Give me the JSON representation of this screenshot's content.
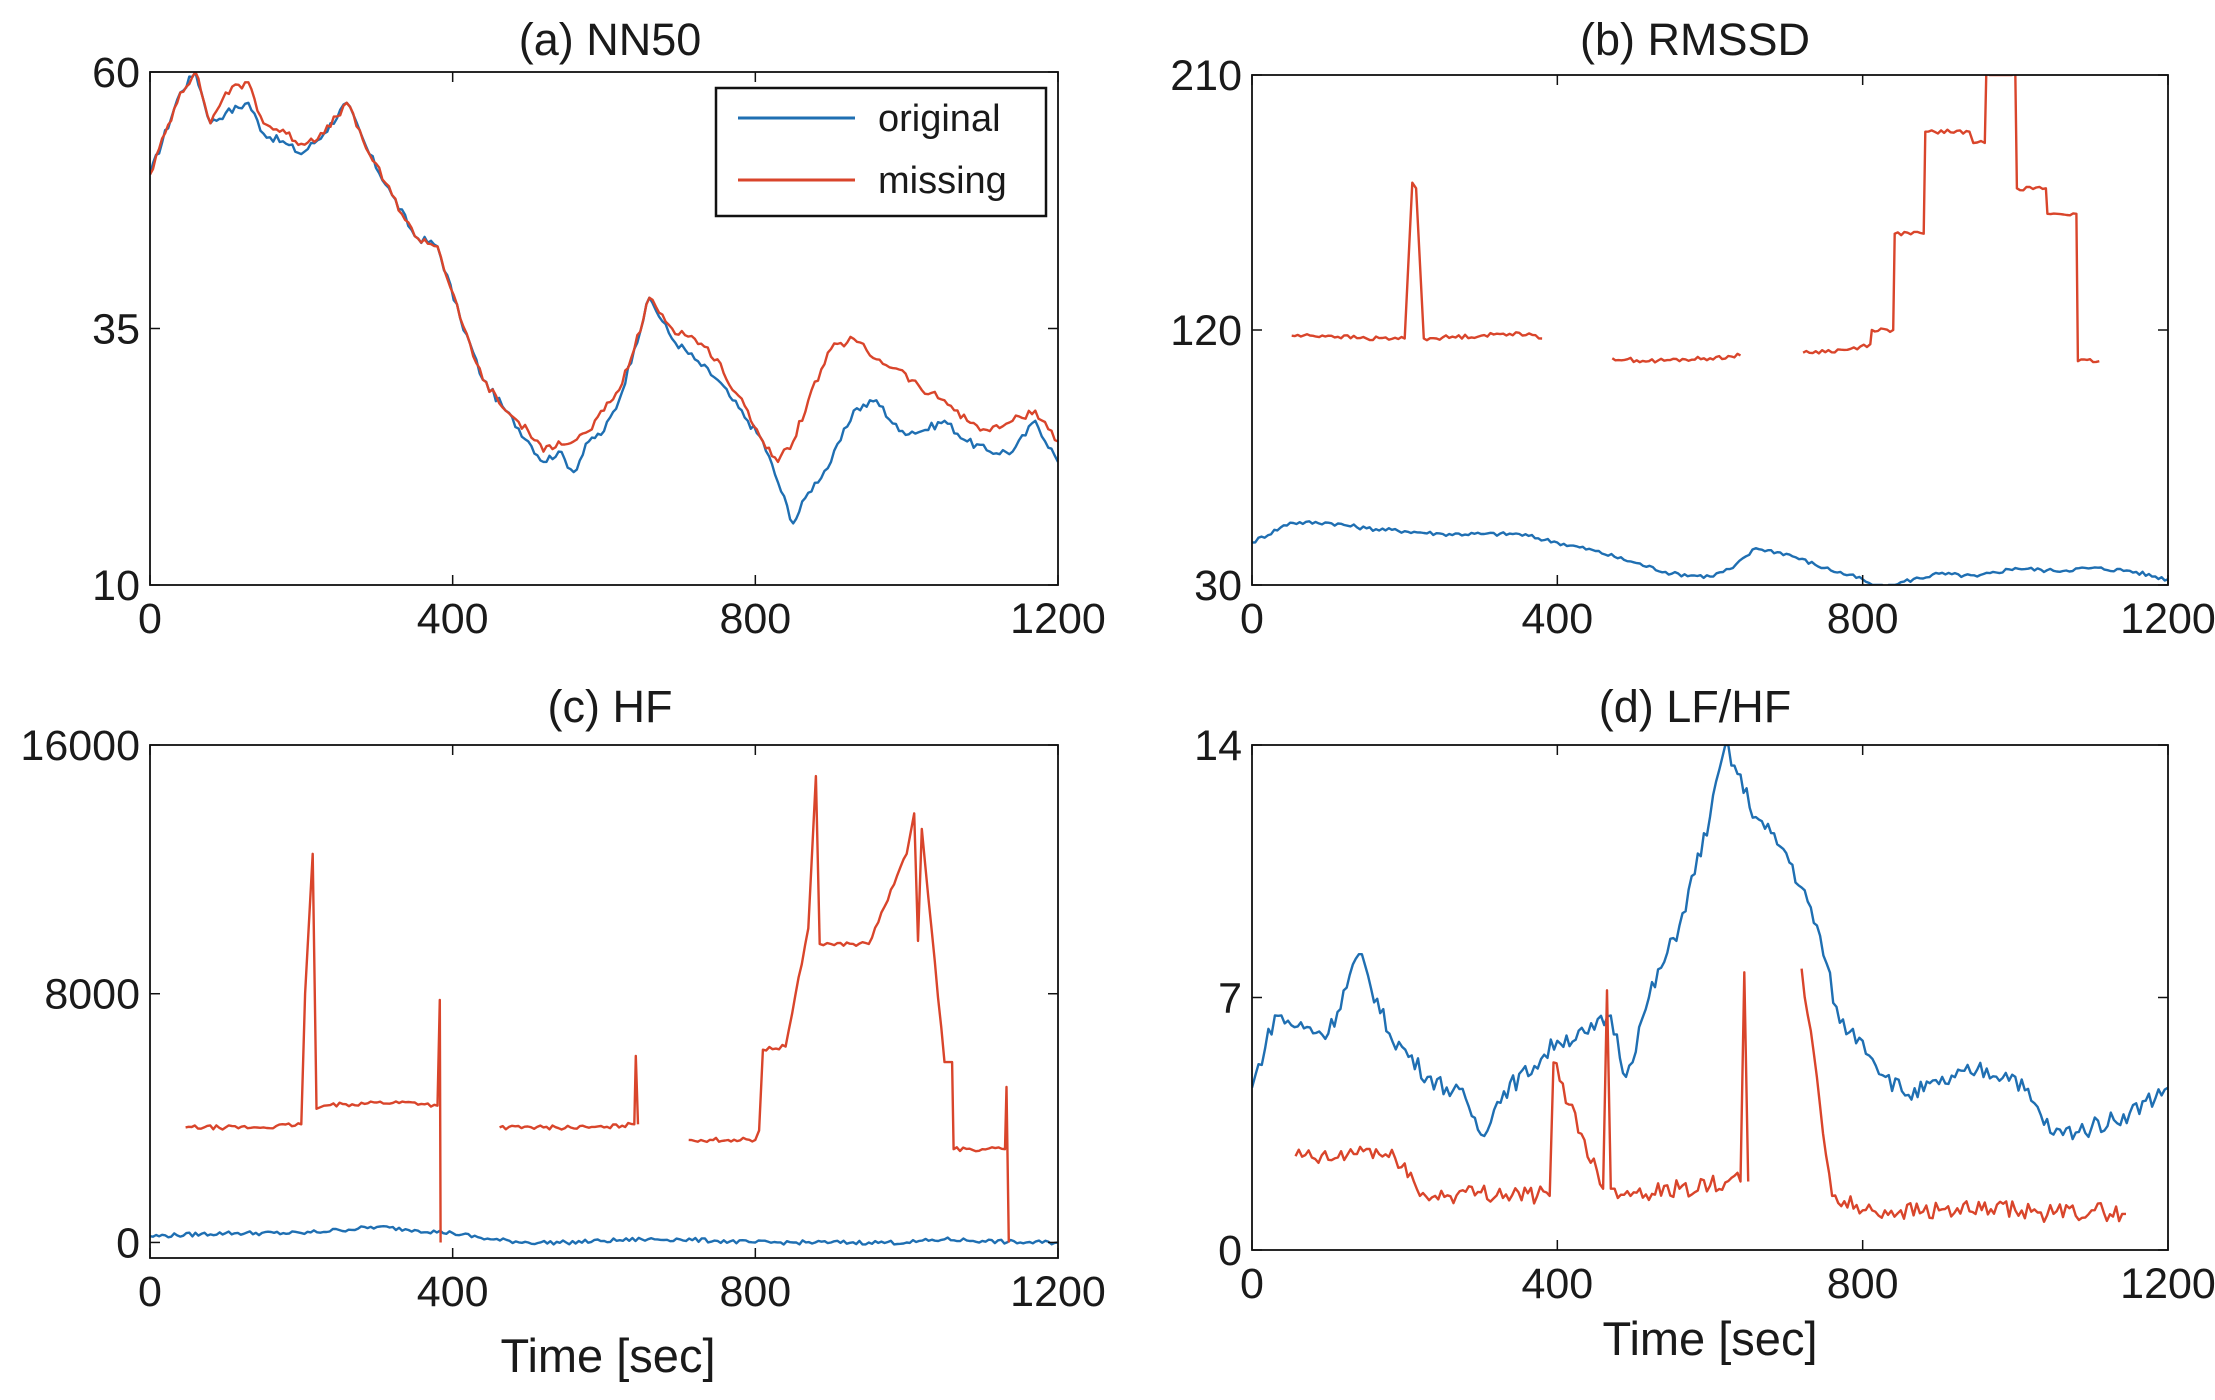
{
  "figure": {
    "xlabel": "Time [sec]",
    "legend": {
      "entries": [
        "original",
        "missing"
      ]
    },
    "colors": {
      "original": "#1f6fb2",
      "missing": "#d9452b",
      "axis": "#111111"
    }
  },
  "chart_data": [
    {
      "type": "line",
      "title": "(a) NN50",
      "xlabel": "",
      "ylabel": "",
      "xlim": [
        0,
        1200
      ],
      "ylim": [
        10,
        60
      ],
      "xticks": [
        0,
        400,
        800,
        1200
      ],
      "yticks": [
        10,
        35,
        60
      ],
      "legend": "top-right",
      "series": [
        {
          "name": "original",
          "x": [
            0,
            40,
            60,
            80,
            100,
            130,
            150,
            180,
            200,
            230,
            260,
            290,
            320,
            350,
            380,
            410,
            440,
            470,
            500,
            520,
            540,
            560,
            580,
            600,
            620,
            640,
            660,
            690,
            720,
            750,
            770,
            790,
            810,
            830,
            850,
            870,
            900,
            930,
            960,
            990,
            1020,
            1050,
            1080,
            1110,
            1140,
            1170,
            1200
          ],
          "y": [
            50,
            58,
            60,
            55,
            56,
            57,
            54,
            53,
            52,
            54,
            57,
            52,
            48,
            44,
            43,
            36,
            30,
            27,
            24,
            22,
            23,
            21,
            24,
            25,
            28,
            33,
            38,
            34,
            32,
            30,
            28,
            26,
            24,
            20,
            16,
            19,
            22,
            27,
            28,
            25,
            25,
            26,
            24,
            23,
            23,
            26,
            22
          ]
        },
        {
          "name": "missing",
          "x": [
            0,
            40,
            60,
            80,
            100,
            130,
            150,
            180,
            200,
            230,
            260,
            290,
            320,
            350,
            380,
            410,
            440,
            470,
            500,
            520,
            540,
            560,
            580,
            600,
            620,
            640,
            660,
            690,
            720,
            750,
            770,
            790,
            810,
            830,
            850,
            870,
            900,
            930,
            960,
            990,
            1020,
            1050,
            1080,
            1110,
            1140,
            1170,
            1200
          ],
          "y": [
            50,
            58,
            60,
            55,
            58,
            59,
            55,
            54,
            53,
            54,
            57,
            52,
            48,
            44,
            43,
            36,
            30,
            27,
            25,
            23,
            24,
            24,
            25,
            27,
            29,
            33,
            38,
            35,
            34,
            32,
            29,
            27,
            24,
            22,
            24,
            28,
            33,
            34,
            32,
            31,
            29,
            28,
            26,
            25,
            26,
            27,
            24
          ]
        }
      ]
    },
    {
      "type": "line",
      "title": "(b) RMSSD",
      "xlabel": "",
      "ylabel": "",
      "xlim": [
        0,
        1200
      ],
      "ylim": [
        30,
        210
      ],
      "xticks": [
        0,
        400,
        800,
        1200
      ],
      "yticks": [
        30,
        120,
        210
      ],
      "series": [
        {
          "name": "original",
          "x": [
            0,
            50,
            100,
            150,
            200,
            250,
            300,
            350,
            400,
            450,
            500,
            550,
            600,
            630,
            660,
            700,
            750,
            800,
            830,
            850,
            900,
            950,
            1000,
            1050,
            1100,
            1150,
            1200
          ],
          "y": [
            45,
            52,
            52,
            50,
            49,
            48,
            48,
            48,
            45,
            42,
            38,
            34,
            33,
            36,
            43,
            41,
            36,
            32,
            26,
            31,
            34,
            33,
            36,
            35,
            36,
            35,
            32
          ]
        },
        {
          "name": "missing",
          "x": [
            0,
            50,
            52,
            100,
            150,
            200,
            210,
            215,
            225,
            300,
            350,
            380,
            382,
            400,
            450,
            470,
            472,
            520,
            600,
            640,
            642,
            700,
            720,
            722,
            780,
            810,
            812,
            840,
            842,
            880,
            882,
            940,
            945,
            960,
            962,
            1000,
            1002,
            1040,
            1042,
            1080,
            1082,
            1110,
            1112,
            1200
          ],
          "y": [
            null,
            null,
            118,
            118,
            117,
            117,
            172,
            170,
            117,
            118,
            119,
            117,
            null,
            null,
            null,
            null,
            110,
            109,
            110,
            111,
            null,
            null,
            null,
            112,
            113,
            115,
            120,
            120,
            154,
            154,
            190,
            190,
            186,
            186,
            211,
            211,
            170,
            170,
            161,
            161,
            109,
            109,
            null,
            null
          ]
        }
      ]
    },
    {
      "type": "line",
      "title": "(c) HF",
      "xlabel": "Time [sec]",
      "ylabel": "",
      "xlim": [
        0,
        1200
      ],
      "ylim": [
        -500,
        16000
      ],
      "xticks": [
        0,
        400,
        800,
        1200
      ],
      "yticks": [
        0,
        8000,
        16000
      ],
      "series": [
        {
          "name": "original",
          "x": [
            0,
            100,
            200,
            250,
            300,
            350,
            400,
            450,
            500,
            550,
            600,
            650,
            700,
            750,
            800,
            850,
            900,
            950,
            1000,
            1050,
            1100,
            1150,
            1200
          ],
          "y": [
            200,
            300,
            300,
            400,
            500,
            400,
            300,
            100,
            0,
            0,
            50,
            100,
            100,
            50,
            0,
            0,
            0,
            0,
            0,
            100,
            50,
            0,
            0
          ]
        },
        {
          "name": "missing",
          "x": [
            0,
            45,
            47,
            100,
            150,
            200,
            205,
            215,
            220,
            230,
            300,
            350,
            380,
            383,
            384,
            385,
            400,
            460,
            462,
            520,
            600,
            640,
            642,
            645,
            700,
            710,
            712,
            800,
            805,
            810,
            840,
            870,
            880,
            885,
            900,
            950,
            1000,
            1010,
            1015,
            1020,
            1050,
            1060,
            1062,
            1100,
            1130,
            1132,
            1135
          ],
          "y": [
            null,
            null,
            3700,
            3700,
            3700,
            3800,
            8000,
            12500,
            4300,
            4400,
            4500,
            4500,
            4400,
            7800,
            0,
            null,
            null,
            null,
            3700,
            3700,
            3700,
            3800,
            6000,
            3800,
            null,
            null,
            3300,
            3300,
            3600,
            6200,
            6300,
            10100,
            15000,
            9600,
            9600,
            9600,
            12500,
            13800,
            9700,
            13300,
            5800,
            5800,
            3000,
            3000,
            3000,
            5000,
            0
          ]
        }
      ]
    },
    {
      "type": "line",
      "title": "(d) LF/HF",
      "xlabel": "Time [sec]",
      "ylabel": "",
      "xlim": [
        0,
        1200
      ],
      "ylim": [
        0,
        14
      ],
      "xticks": [
        0,
        400,
        800,
        1200
      ],
      "yticks": [
        0,
        7,
        14
      ],
      "series": [
        {
          "name": "original",
          "x": [
            0,
            30,
            60,
            100,
            140,
            180,
            230,
            280,
            300,
            330,
            370,
            400,
            440,
            470,
            490,
            520,
            560,
            600,
            620,
            660,
            700,
            740,
            770,
            800,
            830,
            860,
            900,
            950,
            1000,
            1050,
            1100,
            1150,
            1200
          ],
          "y": [
            4.5,
            6.5,
            6.2,
            6,
            8.2,
            6,
            4.8,
            4.2,
            3.2,
            4.4,
            5.1,
            5.8,
            6,
            6.5,
            4.8,
            7,
            9,
            12,
            14,
            12,
            11,
            9,
            6.3,
            5.8,
            4.8,
            4.3,
            4.6,
            5,
            4.8,
            3.2,
            3.4,
            3.8,
            4.5
          ]
        },
        {
          "name": "missing",
          "x": [
            0,
            55,
            57,
            100,
            150,
            200,
            220,
            240,
            300,
            390,
            395,
            460,
            465,
            470,
            475,
            500,
            560,
            640,
            645,
            650,
            655,
            700,
            720,
            760,
            800,
            850,
            900,
            1000,
            1050,
            1100,
            1140,
            1145,
            1150
          ],
          "y": [
            null,
            null,
            2.6,
            2.5,
            2.8,
            2.4,
            1.5,
            1.5,
            1.6,
            1.5,
            5.2,
            1.7,
            7.2,
            1.7,
            1.7,
            1.6,
            1.7,
            1.9,
            7.7,
            1.9,
            null,
            null,
            7.8,
            1.5,
            1.1,
            1.1,
            1.1,
            1.1,
            1.0,
            1.1,
            1.0,
            1.0,
            null
          ]
        }
      ]
    }
  ]
}
